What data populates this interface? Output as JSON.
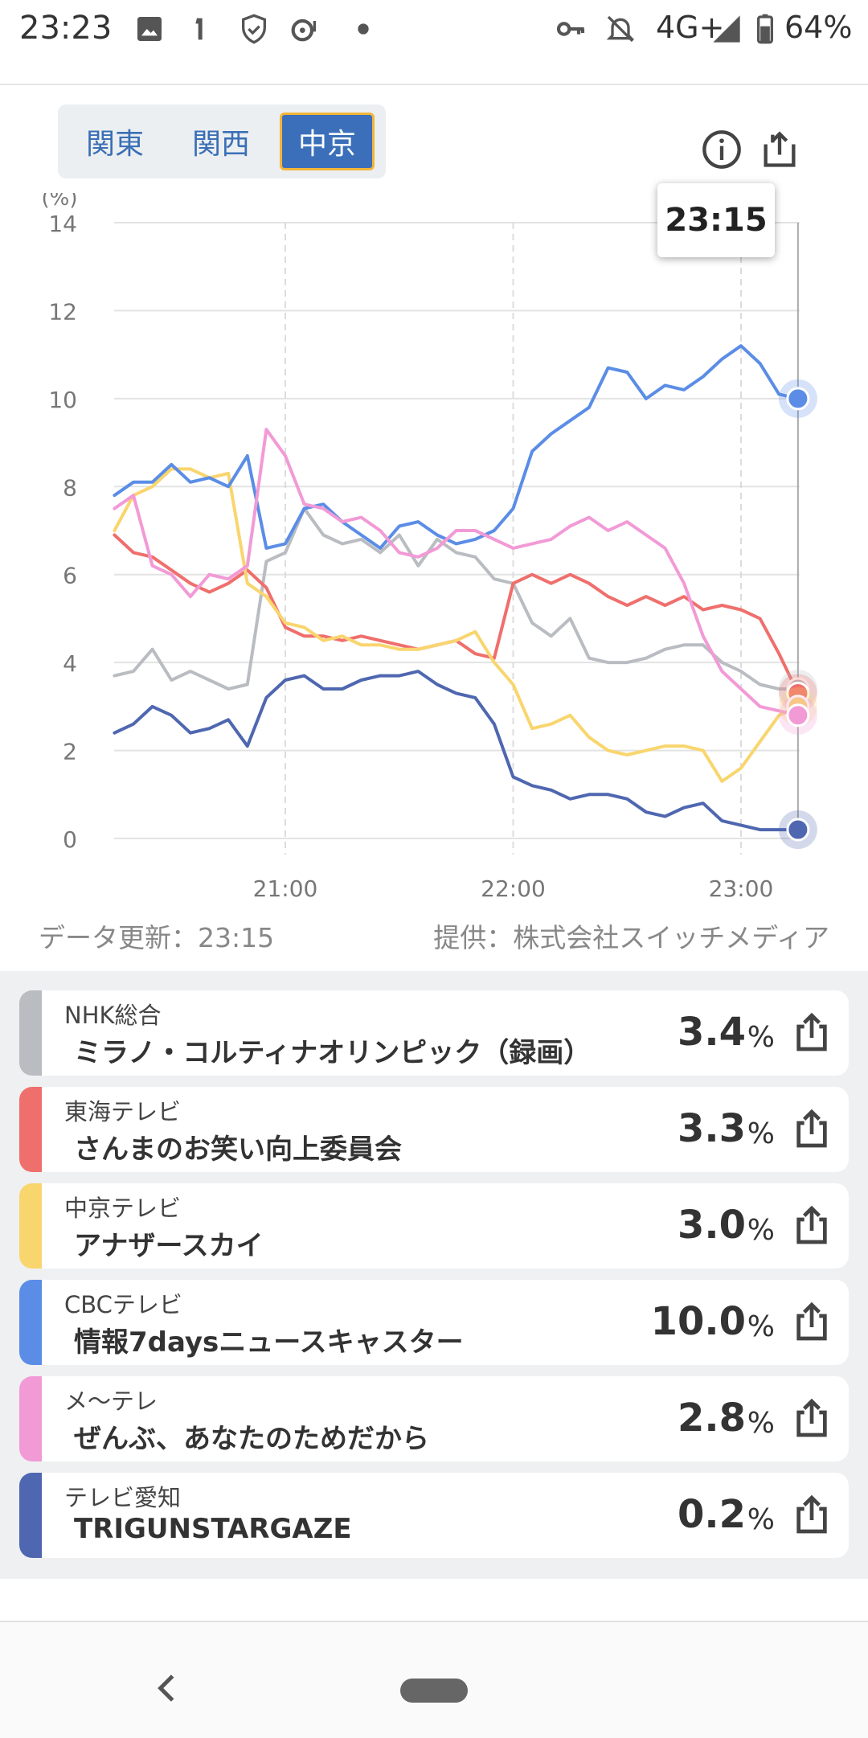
{
  "status_bar": {
    "time": "23:23",
    "network": "4G+",
    "battery": "64%",
    "icons": [
      "image-icon",
      "notification-icon",
      "shield-icon",
      "cast-icon",
      "dot-icon",
      "key-icon",
      "bell-off-icon",
      "signal-icon",
      "battery-icon"
    ]
  },
  "region_tabs": [
    {
      "label": "関東",
      "active": false
    },
    {
      "label": "関西",
      "active": false
    },
    {
      "label": "中京",
      "active": true
    }
  ],
  "header_icons": [
    "info-icon",
    "share-icon"
  ],
  "tooltip": {
    "time": "23:15"
  },
  "chart_data": {
    "type": "line",
    "ylabel": "(%)",
    "ylim": [
      0,
      14
    ],
    "yticks": [
      "0",
      "2",
      "4",
      "6",
      "8",
      "10",
      "12",
      "14"
    ],
    "x_tick_labels": [
      "21:00",
      "22:00",
      "23:00"
    ],
    "grid": true,
    "x_unit_note": "minutes after 20:15 not shown; x values below are clock times",
    "series": [
      {
        "name": "NHK総合",
        "color": "#b9bcc1",
        "x": [
          "20:15",
          "20:20",
          "20:25",
          "20:30",
          "20:35",
          "20:40",
          "20:45",
          "20:50",
          "20:55",
          "21:00",
          "21:05",
          "21:10",
          "21:15",
          "21:20",
          "21:25",
          "21:30",
          "21:35",
          "21:40",
          "21:45",
          "21:50",
          "21:55",
          "22:00",
          "22:05",
          "22:10",
          "22:15",
          "22:20",
          "22:25",
          "22:30",
          "22:35",
          "22:40",
          "22:45",
          "22:50",
          "22:55",
          "23:00",
          "23:05",
          "23:10",
          "23:15"
        ],
        "values": [
          3.7,
          3.8,
          4.3,
          3.6,
          3.8,
          3.6,
          3.4,
          3.5,
          6.3,
          6.5,
          7.5,
          6.9,
          6.7,
          6.8,
          6.5,
          6.9,
          6.2,
          6.8,
          6.5,
          6.4,
          5.9,
          5.8,
          4.9,
          4.6,
          5.0,
          4.1,
          4.0,
          4.0,
          4.1,
          4.3,
          4.4,
          4.4,
          4.0,
          3.8,
          3.5,
          3.4,
          3.4
        ]
      },
      {
        "name": "東海テレビ",
        "color": "#ef6f6c",
        "x": [
          "20:15",
          "20:20",
          "20:25",
          "20:30",
          "20:35",
          "20:40",
          "20:45",
          "20:50",
          "20:55",
          "21:00",
          "21:05",
          "21:10",
          "21:15",
          "21:20",
          "21:25",
          "21:30",
          "21:35",
          "21:40",
          "21:45",
          "21:50",
          "21:55",
          "22:00",
          "22:05",
          "22:10",
          "22:15",
          "22:20",
          "22:25",
          "22:30",
          "22:35",
          "22:40",
          "22:45",
          "22:50",
          "22:55",
          "23:00",
          "23:05",
          "23:10",
          "23:15"
        ],
        "values": [
          6.9,
          6.5,
          6.4,
          6.1,
          5.8,
          5.6,
          5.8,
          6.1,
          5.7,
          4.8,
          4.6,
          4.6,
          4.5,
          4.6,
          4.5,
          4.4,
          4.3,
          4.4,
          4.5,
          4.2,
          4.1,
          5.8,
          6.0,
          5.8,
          6.0,
          5.8,
          5.5,
          5.3,
          5.5,
          5.3,
          5.5,
          5.2,
          5.3,
          5.2,
          5.0,
          4.2,
          3.3
        ]
      },
      {
        "name": "中京テレビ",
        "color": "#f9d56e",
        "x": [
          "20:15",
          "20:20",
          "20:25",
          "20:30",
          "20:35",
          "20:40",
          "20:45",
          "20:50",
          "20:55",
          "21:00",
          "21:05",
          "21:10",
          "21:15",
          "21:20",
          "21:25",
          "21:30",
          "21:35",
          "21:40",
          "21:45",
          "21:50",
          "21:55",
          "22:00",
          "22:05",
          "22:10",
          "22:15",
          "22:20",
          "22:25",
          "22:30",
          "22:35",
          "22:40",
          "22:45",
          "22:50",
          "22:55",
          "23:00",
          "23:05",
          "23:10",
          "23:15"
        ],
        "values": [
          7.0,
          7.8,
          8.0,
          8.4,
          8.4,
          8.2,
          8.3,
          5.8,
          5.5,
          4.9,
          4.8,
          4.5,
          4.6,
          4.4,
          4.4,
          4.3,
          4.3,
          4.4,
          4.5,
          4.7,
          4.0,
          3.5,
          2.5,
          2.6,
          2.8,
          2.3,
          2.0,
          1.9,
          2.0,
          2.1,
          2.1,
          2.0,
          1.3,
          1.6,
          2.2,
          2.8,
          3.0
        ]
      },
      {
        "name": "CBCテレビ",
        "color": "#5b8de6",
        "x": [
          "20:15",
          "20:20",
          "20:25",
          "20:30",
          "20:35",
          "20:40",
          "20:45",
          "20:50",
          "20:55",
          "21:00",
          "21:05",
          "21:10",
          "21:15",
          "21:20",
          "21:25",
          "21:30",
          "21:35",
          "21:40",
          "21:45",
          "21:50",
          "21:55",
          "22:00",
          "22:05",
          "22:10",
          "22:15",
          "22:20",
          "22:25",
          "22:30",
          "22:35",
          "22:40",
          "22:45",
          "22:50",
          "22:55",
          "23:00",
          "23:05",
          "23:10",
          "23:15"
        ],
        "values": [
          7.8,
          8.1,
          8.1,
          8.5,
          8.1,
          8.2,
          8.0,
          8.7,
          6.6,
          6.7,
          7.5,
          7.6,
          7.2,
          6.9,
          6.6,
          7.1,
          7.2,
          6.9,
          6.7,
          6.8,
          7.0,
          7.5,
          8.8,
          9.2,
          9.5,
          9.8,
          10.7,
          10.6,
          10.0,
          10.3,
          10.2,
          10.5,
          10.9,
          11.2,
          10.8,
          10.1,
          10.0
        ]
      },
      {
        "name": "メ～テレ",
        "color": "#f29ad6",
        "x": [
          "20:15",
          "20:20",
          "20:25",
          "20:30",
          "20:35",
          "20:40",
          "20:45",
          "20:50",
          "20:55",
          "21:00",
          "21:05",
          "21:10",
          "21:15",
          "21:20",
          "21:25",
          "21:30",
          "21:35",
          "21:40",
          "21:45",
          "21:50",
          "21:55",
          "22:00",
          "22:05",
          "22:10",
          "22:15",
          "22:20",
          "22:25",
          "22:30",
          "22:35",
          "22:40",
          "22:45",
          "22:50",
          "22:55",
          "23:00",
          "23:05",
          "23:10",
          "23:15"
        ],
        "values": [
          7.5,
          7.8,
          6.2,
          6.0,
          5.5,
          6.0,
          5.9,
          6.2,
          9.3,
          8.7,
          7.6,
          7.5,
          7.2,
          7.3,
          7.0,
          6.5,
          6.4,
          6.6,
          7.0,
          7.0,
          6.8,
          6.6,
          6.7,
          6.8,
          7.1,
          7.3,
          7.0,
          7.2,
          6.9,
          6.6,
          5.8,
          4.6,
          3.8,
          3.4,
          3.0,
          2.9,
          2.8
        ]
      },
      {
        "name": "テレビ愛知",
        "color": "#4f67b0",
        "x": [
          "20:15",
          "20:20",
          "20:25",
          "20:30",
          "20:35",
          "20:40",
          "20:45",
          "20:50",
          "20:55",
          "21:00",
          "21:05",
          "21:10",
          "21:15",
          "21:20",
          "21:25",
          "21:30",
          "21:35",
          "21:40",
          "21:45",
          "21:50",
          "21:55",
          "22:00",
          "22:05",
          "22:10",
          "22:15",
          "22:20",
          "22:25",
          "22:30",
          "22:35",
          "22:40",
          "22:45",
          "22:50",
          "22:55",
          "23:00",
          "23:05",
          "23:10",
          "23:15"
        ],
        "values": [
          2.4,
          2.6,
          3.0,
          2.8,
          2.4,
          2.5,
          2.7,
          2.1,
          3.2,
          3.6,
          3.7,
          3.4,
          3.4,
          3.6,
          3.7,
          3.7,
          3.8,
          3.5,
          3.3,
          3.2,
          2.6,
          1.4,
          1.2,
          1.1,
          0.9,
          1.0,
          1.0,
          0.9,
          0.6,
          0.5,
          0.7,
          0.8,
          0.4,
          0.3,
          0.2,
          0.2,
          0.2
        ]
      }
    ]
  },
  "footer": {
    "updated": "データ更新：23:15",
    "provider": "提供：株式会社スイッチメディア"
  },
  "channels": [
    {
      "channel": "NHK総合",
      "program": "ミラノ・コルティナオリンピック（録画）",
      "value": "3.4",
      "unit": "%",
      "color": "#b9bcc1"
    },
    {
      "channel": "東海テレビ",
      "program": "さんまのお笑い向上委員会",
      "value": "3.3",
      "unit": "%",
      "color": "#ef6f6c"
    },
    {
      "channel": "中京テレビ",
      "program": "アナザースカイ",
      "value": "3.0",
      "unit": "%",
      "color": "#f9d56e"
    },
    {
      "channel": "CBCテレビ",
      "program": "情報7daysニュースキャスター",
      "value": "10.0",
      "unit": "%",
      "color": "#5b8de6"
    },
    {
      "channel": "メ～テレ",
      "program": "ぜんぶ、あなたのためだから",
      "value": "2.8",
      "unit": "%",
      "color": "#f29ad6"
    },
    {
      "channel": "テレビ愛知",
      "program": "TRIGUNSTARGAZE",
      "value": "0.2",
      "unit": "%",
      "color": "#4f67b0"
    }
  ]
}
